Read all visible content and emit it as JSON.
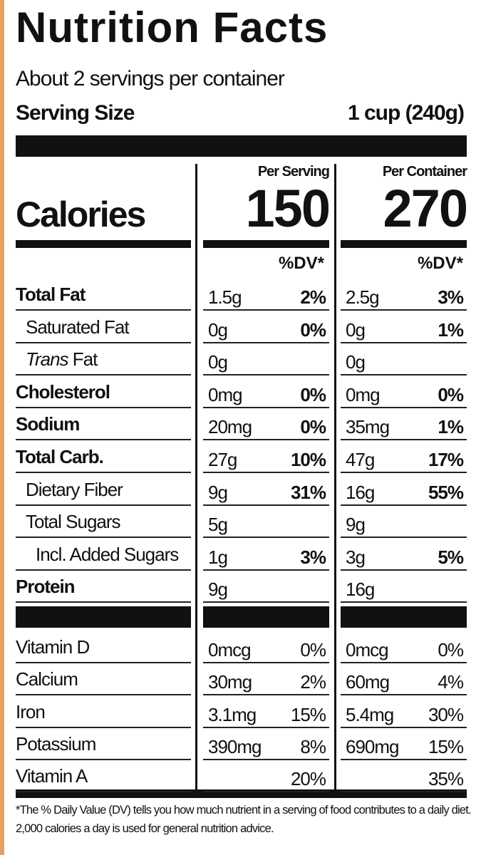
{
  "title": "Nutrition Facts",
  "servings": "About 2 servings per container",
  "serving_size": {
    "label": "Serving Size",
    "value": "1 cup (240g)"
  },
  "columns": [
    "Per Serving",
    "Per Container"
  ],
  "calories": {
    "label": "Calories",
    "values": [
      "150",
      "270"
    ]
  },
  "dv_header": "%DV*",
  "nutrients": [
    {
      "name": "Total Fat",
      "serving": {
        "amount": "1.5g",
        "dv": "2%"
      },
      "container": {
        "amount": "2.5g",
        "dv": "3%"
      },
      "sub": [
        {
          "name": "Saturated Fat",
          "serving": {
            "amount": "0g",
            "dv": "0%"
          },
          "container": {
            "amount": "0g",
            "dv": "1%"
          }
        },
        {
          "name_italic": "Trans",
          "name": "Fat",
          "serving": {
            "amount": "0g"
          },
          "container": {
            "amount": "0g"
          }
        }
      ]
    },
    {
      "name": "Cholesterol",
      "serving": {
        "amount": "0mg",
        "dv": "0%"
      },
      "container": {
        "amount": "0mg",
        "dv": "0%"
      }
    },
    {
      "name": "Sodium",
      "serving": {
        "amount": "20mg",
        "dv": "0%"
      },
      "container": {
        "amount": "35mg",
        "dv": "1%"
      }
    },
    {
      "name": "Total Carb.",
      "serving": {
        "amount": "27g",
        "dv": "10%"
      },
      "container": {
        "amount": "47g",
        "dv": "17%"
      },
      "sub": [
        {
          "name": "Dietary Fiber",
          "serving": {
            "amount": "9g",
            "dv": "31%"
          },
          "container": {
            "amount": "16g",
            "dv": "55%"
          }
        },
        {
          "name": "Total Sugars",
          "serving": {
            "amount": "5g"
          },
          "container": {
            "amount": "9g"
          },
          "sub": [
            {
              "name": "Incl. Added Sugars",
              "serving": {
                "amount": "1g",
                "dv": "3%"
              },
              "container": {
                "amount": "3g",
                "dv": "5%"
              }
            }
          ]
        }
      ]
    },
    {
      "name": "Protein",
      "serving": {
        "amount": "9g"
      },
      "container": {
        "amount": "16g"
      }
    }
  ],
  "vitamins": [
    {
      "name": "Vitamin D",
      "serving": {
        "amount": "0mcg",
        "dv": "0%"
      },
      "container": {
        "amount": "0mcg",
        "dv": "0%"
      }
    },
    {
      "name": "Calcium",
      "serving": {
        "amount": "30mg",
        "dv": "2%"
      },
      "container": {
        "amount": "60mg",
        "dv": "4%"
      }
    },
    {
      "name": "Iron",
      "serving": {
        "amount": "3.1mg",
        "dv": "15%"
      },
      "container": {
        "amount": "5.4mg",
        "dv": "30%"
      }
    },
    {
      "name": "Potassium",
      "serving": {
        "amount": "390mg",
        "dv": "8%"
      },
      "container": {
        "amount": "690mg",
        "dv": "15%"
      }
    },
    {
      "name": "Vitamin A",
      "serving": {
        "dv": "20%"
      },
      "container": {
        "dv": "35%"
      }
    }
  ],
  "footnote": "*The % Daily Value (DV) tells you how much nutrient in a serving of food contributes to a daily diet. 2,000 calories a day is used for general nutrition advice."
}
